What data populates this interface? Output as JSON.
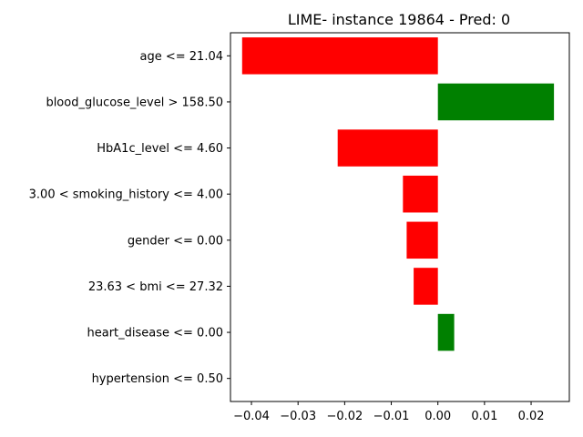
{
  "chart_data": {
    "type": "bar",
    "orientation": "horizontal",
    "title": "LIME- instance 19864 - Pred: 0",
    "xlabel": "",
    "ylabel": "",
    "categories": [
      "age <= 21.04",
      "blood_glucose_level > 158.50",
      "HbA1c_level <= 4.60",
      "3.00 < smoking_history <= 4.00",
      "gender <= 0.00",
      "23.63 < bmi <= 27.32",
      "heart_disease <= 0.00",
      "hypertension <= 0.50"
    ],
    "values": [
      -0.042,
      0.0249,
      -0.0215,
      -0.0075,
      -0.0067,
      -0.0052,
      0.0035,
      0.0
    ],
    "xlim": [
      -0.0445,
      0.0282
    ],
    "xticks": [
      -0.04,
      -0.03,
      -0.02,
      -0.01,
      0.0,
      0.01,
      0.02
    ],
    "xtick_labels": [
      "−0.04",
      "−0.03",
      "−0.02",
      "−0.01",
      "0.00",
      "0.01",
      "0.02"
    ],
    "colors": {
      "positive": "#008000",
      "negative": "#ff0000"
    },
    "grid": false,
    "legend": "none"
  }
}
